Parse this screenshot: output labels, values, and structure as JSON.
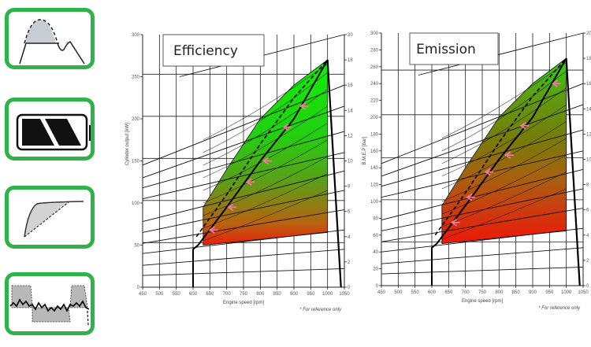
{
  "sidebar": {
    "cards": [
      {
        "icon": "load-curve-peak-icon"
      },
      {
        "icon": "battery-icon"
      },
      {
        "icon": "ramp-response-icon"
      },
      {
        "icon": "load-smoothing-icon"
      }
    ]
  },
  "chart_data": [
    {
      "type": "area",
      "title": "Efficiency",
      "xlabel": "Engine speed [rpm]",
      "ylabel": "Cylinder output [kW]",
      "y2label": "",
      "note": "* For reference only",
      "x_ticks": [
        450,
        500,
        550,
        600,
        650,
        700,
        750,
        800,
        850,
        900,
        950,
        1000,
        1050
      ],
      "y_ticks": [
        0,
        50,
        100,
        150,
        200,
        250,
        300
      ],
      "y2_ticks": [
        0,
        2,
        4,
        6,
        8,
        10,
        12,
        14,
        16,
        18,
        20
      ],
      "xlim": [
        450,
        1050
      ],
      "ylim": [
        0,
        300
      ],
      "y2lim": [
        0,
        20
      ],
      "color_scale": {
        "low": "#e8200a",
        "high": "#1ee010"
      },
      "envelope": {
        "x": [
          630,
          630,
          700,
          800,
          900,
          1000,
          1000
        ],
        "y": [
          50,
          95,
          140,
          200,
          240,
          270,
          65
        ]
      },
      "operating_line_solid": {
        "x": [
          600,
          600,
          615,
          700,
          800,
          900,
          1000
        ],
        "y": [
          0,
          45,
          50,
          95,
          150,
          200,
          270
        ]
      },
      "operating_line_dashed": {
        "x": [
          610,
          700,
          800,
          900,
          1000
        ],
        "y": [
          60,
          110,
          170,
          225,
          270
        ]
      },
      "arrows_at": [
        [
          650,
          68
        ],
        [
          705,
          95
        ],
        [
          760,
          125
        ],
        [
          810,
          150
        ],
        [
          870,
          190
        ],
        [
          920,
          215
        ]
      ]
    },
    {
      "type": "area",
      "title": "Emission",
      "xlabel": "Engine speed [rpm]",
      "ylabel": "B.M.E.P [bar]",
      "note": "* For reference only",
      "x_ticks": [
        450,
        500,
        550,
        600,
        650,
        700,
        750,
        800,
        850,
        900,
        950,
        1000,
        1050
      ],
      "y_ticks": [
        0,
        20,
        40,
        60,
        80,
        100,
        120,
        140,
        160,
        180,
        200,
        220,
        240,
        260,
        280,
        300
      ],
      "y2_ticks": [
        0,
        2,
        4,
        6,
        8,
        10,
        12,
        14,
        16,
        18,
        20
      ],
      "xlim": [
        450,
        1050
      ],
      "ylim": [
        0,
        300
      ],
      "y2lim": [
        0,
        20
      ],
      "color_scale": {
        "low": "#e8200a",
        "high": "#34c41a"
      },
      "envelope": {
        "x": [
          630,
          630,
          700,
          800,
          900,
          1000,
          1000
        ],
        "y": [
          50,
          95,
          140,
          200,
          240,
          270,
          65
        ]
      },
      "operating_line_solid": {
        "x": [
          600,
          600,
          615,
          700,
          800,
          900,
          1000
        ],
        "y": [
          0,
          45,
          50,
          95,
          150,
          200,
          270
        ]
      },
      "operating_line_dashed": {
        "x": [
          610,
          700,
          800,
          900,
          1000
        ],
        "y": [
          60,
          110,
          170,
          225,
          270
        ]
      },
      "arrows_at": [
        [
          660,
          75
        ],
        [
          705,
          105
        ],
        [
          760,
          135
        ],
        [
          820,
          155
        ],
        [
          865,
          190
        ],
        [
          960,
          240
        ]
      ]
    }
  ],
  "charts": [
    {
      "title": "Efficiency",
      "xlabel": "Engine speed [rpm]",
      "ylabel": "Cylinder output [kW]",
      "note": "* For reference only"
    },
    {
      "title": "Emission",
      "xlabel": "Engine speed [rpm]",
      "ylabel": "B.M.E.P [bar]",
      "note": "* For reference only"
    }
  ]
}
